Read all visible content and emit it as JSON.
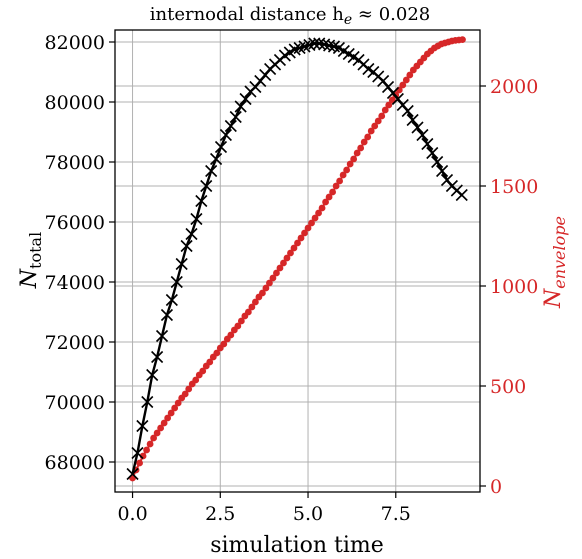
{
  "chart_data": {
    "type": "line",
    "title": "internodal distance h",
    "title_subscript": "e",
    "title_suffix": " ≈ 0.028",
    "xlabel": "simulation time",
    "ylabel_left_main": "N",
    "ylabel_left_sub": "total",
    "ylabel_right_main": "N",
    "ylabel_right_sub": "envelope",
    "xlim": [
      -0.5,
      9.9
    ],
    "ylim_left": [
      67000,
      82400
    ],
    "ylim_right": [
      -30,
      2280
    ],
    "x_ticks": [
      0.0,
      2.5,
      5.0,
      7.5
    ],
    "x_tick_labels": [
      "0.0",
      "2.5",
      "5.0",
      "7.5"
    ],
    "y_left_ticks": [
      68000,
      70000,
      72000,
      74000,
      76000,
      78000,
      80000,
      82000
    ],
    "y_left_tick_labels": [
      "68000",
      "70000",
      "72000",
      "74000",
      "76000",
      "78000",
      "80000",
      "82000"
    ],
    "y_right_ticks": [
      0,
      500,
      1000,
      1500,
      2000
    ],
    "y_right_tick_labels": [
      "0",
      "500",
      "1000",
      "1500",
      "2000"
    ],
    "grid": true,
    "colors": {
      "left_series": "#000000",
      "right_series": "#d62728",
      "grid": "#b0b0b0"
    },
    "series": [
      {
        "axis": "left",
        "marker": "x",
        "x": [
          0.0,
          0.14,
          0.28,
          0.42,
          0.56,
          0.7,
          0.84,
          0.98,
          1.12,
          1.26,
          1.4,
          1.54,
          1.68,
          1.82,
          1.96,
          2.1,
          2.24,
          2.38,
          2.52,
          2.66,
          2.8,
          2.94,
          3.08,
          3.22,
          3.36,
          3.5,
          3.64,
          3.78,
          3.92,
          4.06,
          4.2,
          4.34,
          4.48,
          4.62,
          4.76,
          4.9,
          5.04,
          5.18,
          5.32,
          5.46,
          5.6,
          5.74,
          5.88,
          6.02,
          6.16,
          6.3,
          6.44,
          6.58,
          6.72,
          6.86,
          7.0,
          7.14,
          7.28,
          7.42,
          7.56,
          7.7,
          7.84,
          7.98,
          8.12,
          8.26,
          8.4,
          8.54,
          8.68,
          8.82,
          8.96,
          9.1,
          9.24,
          9.38
        ],
        "y": [
          67600,
          68300,
          69200,
          70000,
          70900,
          71500,
          72200,
          72900,
          73400,
          74000,
          74600,
          75200,
          75600,
          76100,
          76700,
          77200,
          77700,
          78100,
          78500,
          78900,
          79200,
          79500,
          79850,
          80100,
          80350,
          80500,
          80700,
          80900,
          81100,
          81250,
          81400,
          81550,
          81650,
          81750,
          81800,
          81850,
          81900,
          81950,
          81950,
          81920,
          81880,
          81850,
          81800,
          81700,
          81600,
          81500,
          81400,
          81250,
          81100,
          81000,
          80850,
          80700,
          80500,
          80300,
          80100,
          79900,
          79700,
          79400,
          79150,
          78900,
          78600,
          78300,
          78000,
          77700,
          77400,
          77200,
          77050,
          76900
        ]
      },
      {
        "axis": "right",
        "marker": "o",
        "x": [
          0.0,
          0.1,
          0.2,
          0.3,
          0.4,
          0.5,
          0.6,
          0.7,
          0.8,
          0.9,
          1.0,
          1.1,
          1.2,
          1.3,
          1.4,
          1.5,
          1.6,
          1.7,
          1.8,
          1.9,
          2.0,
          2.1,
          2.2,
          2.3,
          2.4,
          2.5,
          2.6,
          2.7,
          2.8,
          2.9,
          3.0,
          3.1,
          3.2,
          3.3,
          3.4,
          3.5,
          3.6,
          3.7,
          3.8,
          3.9,
          4.0,
          4.1,
          4.2,
          4.3,
          4.4,
          4.5,
          4.6,
          4.7,
          4.8,
          4.9,
          5.0,
          5.1,
          5.2,
          5.3,
          5.4,
          5.5,
          5.6,
          5.7,
          5.8,
          5.9,
          6.0,
          6.1,
          6.2,
          6.3,
          6.4,
          6.5,
          6.6,
          6.7,
          6.8,
          6.9,
          7.0,
          7.1,
          7.2,
          7.3,
          7.4,
          7.5,
          7.6,
          7.7,
          7.8,
          7.9,
          8.0,
          8.1,
          8.2,
          8.3,
          8.4,
          8.5,
          8.6,
          8.7,
          8.8,
          8.9,
          9.0,
          9.1,
          9.2,
          9.3,
          9.4
        ],
        "y": [
          40,
          80,
          115,
          150,
          180,
          210,
          240,
          265,
          290,
          315,
          340,
          365,
          390,
          415,
          440,
          460,
          485,
          510,
          530,
          555,
          575,
          600,
          620,
          645,
          665,
          690,
          710,
          735,
          755,
          780,
          800,
          825,
          850,
          870,
          895,
          920,
          945,
          965,
          990,
          1015,
          1040,
          1065,
          1090,
          1115,
          1140,
          1165,
          1190,
          1215,
          1240,
          1265,
          1290,
          1315,
          1340,
          1365,
          1390,
          1420,
          1445,
          1470,
          1500,
          1525,
          1555,
          1580,
          1610,
          1635,
          1665,
          1690,
          1720,
          1745,
          1775,
          1800,
          1825,
          1850,
          1880,
          1905,
          1930,
          1955,
          1980,
          2005,
          2030,
          2055,
          2080,
          2100,
          2120,
          2140,
          2160,
          2175,
          2190,
          2200,
          2210,
          2215,
          2220,
          2225,
          2228,
          2230,
          2232
        ]
      }
    ]
  }
}
